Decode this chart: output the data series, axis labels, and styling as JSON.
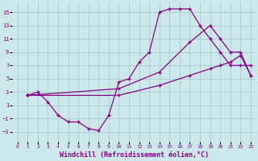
{
  "bg_color": "#cce8ea",
  "grid_color": "#aacccc",
  "line_color": "#880088",
  "marker": "+",
  "xlabel": "Windchill (Refroidissement éolien,°C)",
  "xlabel_fontsize": 6,
  "yticks": [
    -3,
    -1,
    1,
    3,
    5,
    7,
    9,
    11,
    13,
    15
  ],
  "xticks": [
    0,
    1,
    2,
    3,
    4,
    5,
    6,
    7,
    8,
    9,
    10,
    11,
    12,
    13,
    14,
    15,
    16,
    17,
    18,
    19,
    20,
    21,
    22,
    23
  ],
  "xlim": [
    -0.5,
    23.5
  ],
  "ylim": [
    -4.5,
    16.5
  ],
  "curve1_x": [
    1,
    2,
    3,
    4,
    5,
    6,
    7,
    8,
    9,
    10,
    11,
    12,
    13,
    14,
    15,
    16,
    17,
    18,
    19,
    20,
    21,
    22,
    23
  ],
  "curve1_y": [
    2.5,
    3.0,
    1.5,
    -0.5,
    -1.5,
    -1.5,
    -2.5,
    -2.8,
    -0.5,
    4.5,
    5.0,
    7.5,
    9.0,
    15.0,
    15.5,
    15.5,
    15.5,
    13.0,
    11.0,
    9.0,
    7.0,
    7.0,
    7.0
  ],
  "curve2_x": [
    1,
    10,
    14,
    17,
    19,
    20,
    21,
    22,
    23
  ],
  "curve2_y": [
    2.5,
    3.5,
    6.0,
    10.5,
    13.0,
    11.0,
    9.0,
    9.0,
    5.5
  ],
  "curve3_x": [
    1,
    10,
    14,
    17,
    19,
    20,
    21,
    22,
    23
  ],
  "curve3_y": [
    2.5,
    2.5,
    4.0,
    5.5,
    6.5,
    7.0,
    7.5,
    8.5,
    5.5
  ]
}
